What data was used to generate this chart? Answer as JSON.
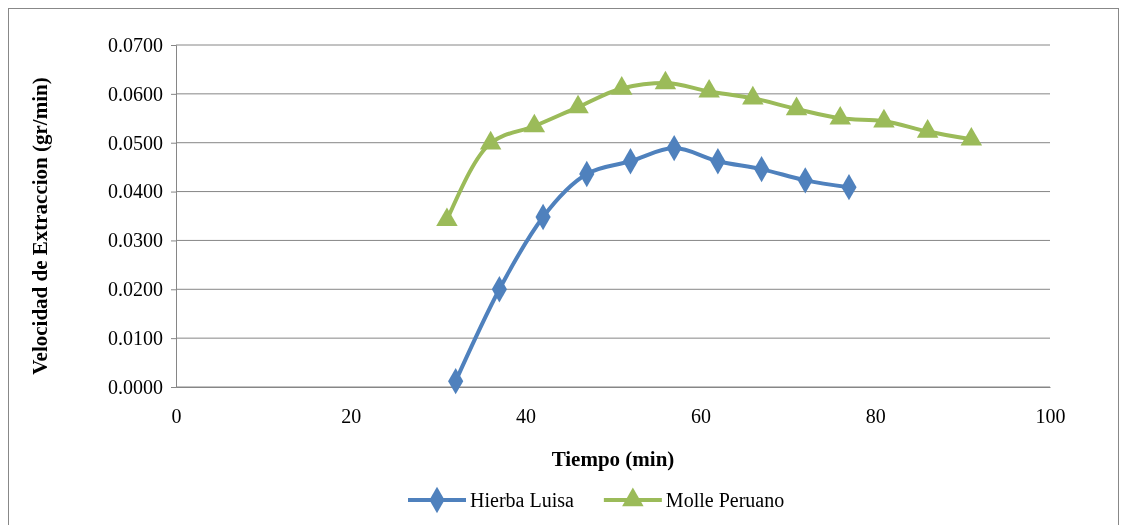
{
  "chart_data": {
    "type": "line",
    "xlabel": "Tiempo (min)",
    "ylabel": "Velocidad de Extraccion (gr/min)",
    "xlim": [
      0,
      100
    ],
    "xticks": [
      0,
      20,
      40,
      60,
      80,
      100
    ],
    "ylim": [
      0,
      0.07
    ],
    "yticks": [
      {
        "value": 0,
        "label": "0.0000"
      },
      {
        "value": 0.01,
        "label": "0.0100"
      },
      {
        "value": 0.02,
        "label": "0.0200"
      },
      {
        "value": 0.03,
        "label": "0.0300"
      },
      {
        "value": 0.04,
        "label": "0.0400"
      },
      {
        "value": 0.05,
        "label": "0.0500"
      },
      {
        "value": 0.06,
        "label": "0.0600"
      },
      {
        "value": 0.07,
        "label": "0.0700"
      }
    ],
    "grid": "y",
    "legend": "bottom",
    "series": [
      {
        "name": "Hierba Luisa",
        "color": "#4f81bd",
        "marker": "diamond",
        "x": [
          32,
          37,
          42,
          47,
          52,
          57,
          62,
          67,
          72,
          77
        ],
        "values": [
          0.0012,
          0.02,
          0.0348,
          0.0436,
          0.0462,
          0.0489,
          0.0462,
          0.0446,
          0.0423,
          0.0409
        ]
      },
      {
        "name": "Molle Peruano",
        "color": "#9bbb59",
        "marker": "triangle",
        "x": [
          31,
          36,
          41,
          46,
          51,
          56,
          61,
          66,
          71,
          76,
          81,
          86,
          91
        ],
        "values": [
          0.0342,
          0.0499,
          0.0534,
          0.0573,
          0.0611,
          0.0622,
          0.0605,
          0.0591,
          0.0569,
          0.055,
          0.0544,
          0.0523,
          0.0507
        ]
      }
    ]
  }
}
